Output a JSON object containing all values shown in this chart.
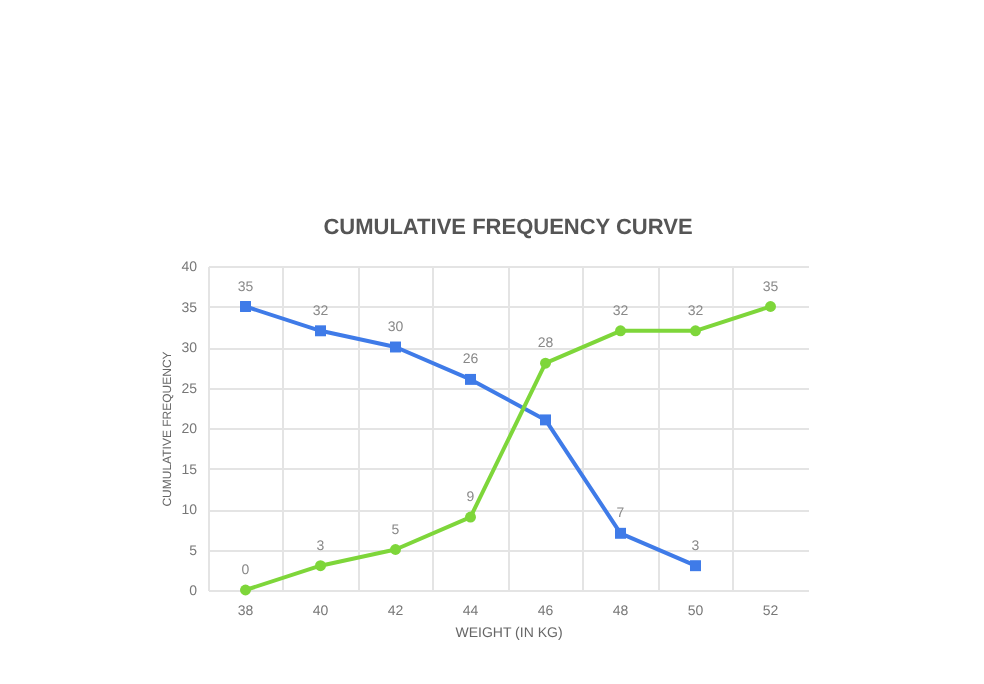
{
  "chart_data": {
    "type": "line",
    "title": "CUMULATIVE FREQUENCY CURVE",
    "xlabel": "WEIGHT (IN KG)",
    "ylabel": "CUMULATIVE FREQUENCY",
    "categories": [
      "38",
      "40",
      "42",
      "44",
      "46",
      "48",
      "50",
      "52"
    ],
    "series": [
      {
        "color": "#3f7be8",
        "marker": "square",
        "values": [
          35,
          32,
          30,
          26,
          21,
          7,
          3,
          null
        ],
        "value_labels": [
          "35",
          "32",
          "30",
          "26",
          null,
          "7",
          "3",
          null
        ]
      },
      {
        "color": "#7ed63a",
        "marker": "circle",
        "values": [
          0,
          3,
          5,
          9,
          28,
          32,
          32,
          35
        ],
        "value_labels": [
          "0",
          "3",
          "5",
          "9",
          "28",
          "32",
          "32",
          "35"
        ]
      }
    ],
    "ylim": [
      0,
      40
    ],
    "yticks": [
      0,
      5,
      10,
      15,
      20,
      25,
      30,
      35,
      40
    ],
    "grid": true
  }
}
